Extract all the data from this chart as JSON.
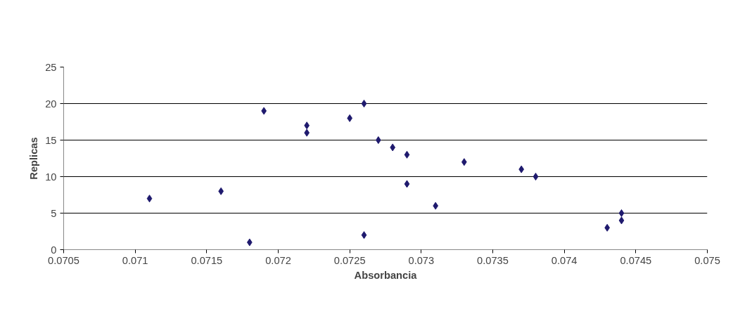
{
  "chart_data": {
    "type": "scatter",
    "xlabel": "Absorbancia",
    "ylabel": "Replicas",
    "x": [
      0.0711,
      0.0716,
      0.0718,
      0.0719,
      0.0722,
      0.0722,
      0.0725,
      0.0726,
      0.0726,
      0.0727,
      0.0728,
      0.0729,
      0.0729,
      0.0731,
      0.0733,
      0.0737,
      0.0738,
      0.0743,
      0.0744,
      0.0744
    ],
    "series": [
      {
        "color": "#1f1a6e",
        "values": [
          7,
          8,
          1,
          19,
          17,
          16,
          18,
          20,
          2,
          15,
          14,
          13,
          9,
          6,
          12,
          11,
          10,
          3,
          5,
          4
        ]
      }
    ],
    "xlim": [
      0.0705,
      0.075
    ],
    "xticks": [
      0.0705,
      0.071,
      0.0715,
      0.072,
      0.0725,
      0.073,
      0.0735,
      0.074,
      0.0745,
      0.075
    ],
    "ylim": [
      0,
      25
    ],
    "yticks": [
      0,
      5,
      10,
      15,
      20,
      25
    ],
    "grid": "y",
    "marker": "diamond"
  }
}
